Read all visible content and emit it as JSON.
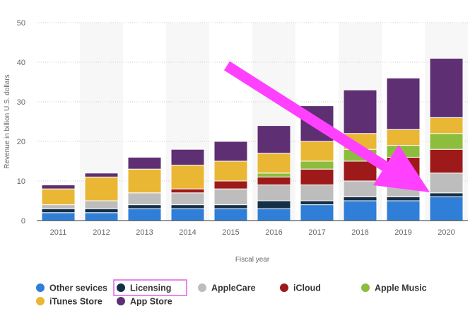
{
  "chart_data": {
    "type": "bar",
    "stacked": true,
    "categories": [
      "2011",
      "2012",
      "2013",
      "2014",
      "2015",
      "2016",
      "2017",
      "2018",
      "2019",
      "2020"
    ],
    "xlabel": "Fiscal year",
    "ylabel": "Revenue in billion U.S. dollars",
    "ylim": [
      0,
      50
    ],
    "yticks": [
      "0",
      "10",
      "20",
      "30",
      "40",
      "50"
    ],
    "grid": true,
    "legend_position": "bottom",
    "series": [
      {
        "name": "Other sevices",
        "color": "#2f7ed8",
        "values": [
          2,
          2,
          3,
          3,
          3,
          3,
          4,
          5,
          5,
          6
        ]
      },
      {
        "name": "Licensing",
        "color": "#152f46",
        "values": [
          1,
          1,
          1,
          1,
          1,
          2,
          1,
          1,
          1,
          1
        ]
      },
      {
        "name": "AppleCare",
        "color": "#bdbdbd",
        "values": [
          1,
          2,
          3,
          3,
          4,
          4,
          4,
          4,
          4,
          5
        ]
      },
      {
        "name": "iCloud",
        "color": "#9e1a1a",
        "values": [
          0,
          0,
          0,
          1,
          2,
          2,
          4,
          5,
          6,
          6
        ]
      },
      {
        "name": "Apple Music",
        "color": "#8cbd3c",
        "values": [
          0,
          0,
          0,
          0,
          0,
          1,
          2,
          3,
          3,
          4
        ]
      },
      {
        "name": "iTunes Store",
        "color": "#eab735",
        "values": [
          4,
          6,
          6,
          6,
          5,
          5,
          5,
          4,
          4,
          4
        ]
      },
      {
        "name": "App Store",
        "color": "#5e2f73",
        "values": [
          1,
          1,
          3,
          4,
          5,
          7,
          9,
          11,
          13,
          15
        ]
      }
    ],
    "highlighted_legend_item": "Licensing"
  },
  "annotation": {
    "arrow_color": "#ff40ff",
    "highlight_color": "#e060e0"
  }
}
